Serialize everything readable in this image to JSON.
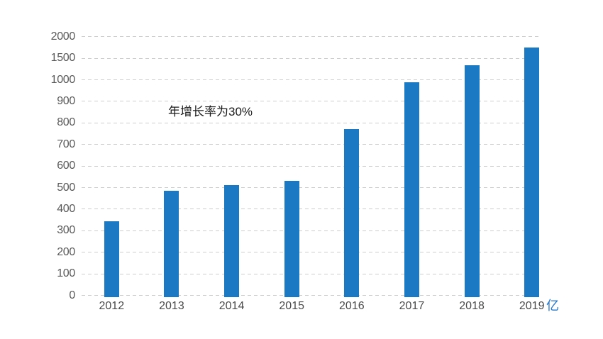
{
  "chart_data": {
    "type": "bar",
    "categories": [
      "2012",
      "2013",
      "2014",
      "2015",
      "2016",
      "2017",
      "2018",
      "2019"
    ],
    "values": [
      345,
      485,
      512,
      532,
      772,
      990,
      1330,
      1755
    ],
    "yticks": [
      0,
      100,
      200,
      300,
      400,
      500,
      600,
      700,
      800,
      900,
      1000,
      1500,
      2000
    ],
    "y_scale": "piecewise: equal tick spacing, 100-unit steps up to 1000, then 500-unit steps to 2000",
    "ylim": [
      0,
      2000
    ],
    "title": "",
    "xlabel": "",
    "ylabel": "",
    "unit_label": "亿",
    "annotation": "年增长率为30%",
    "grid": true,
    "legend": "none",
    "bar_color": "#1B78C3",
    "unit_color": "#2478CE",
    "gridline_color": "#cdcdcd",
    "axis_label_color": "#595959"
  }
}
